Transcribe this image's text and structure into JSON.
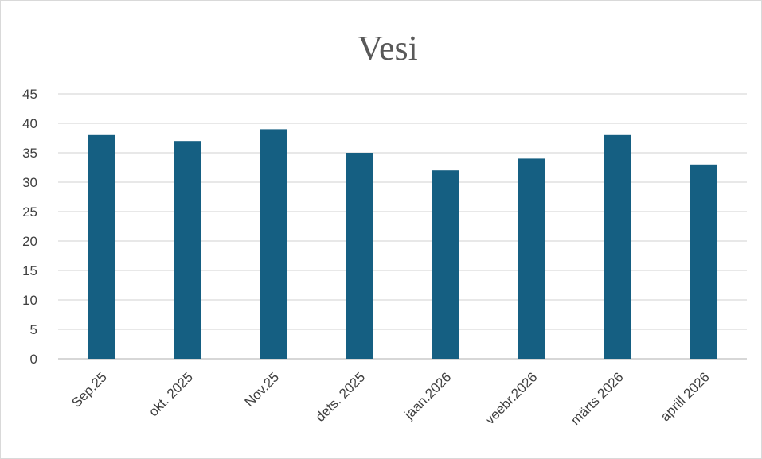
{
  "chart_data": {
    "type": "bar",
    "title": "Vesi",
    "xlabel": "",
    "ylabel": "",
    "categories": [
      "Sep.25",
      "okt. 2025",
      "Nov.25",
      "dets. 2025",
      "jaan.2026",
      "veebr.2026",
      "märts 2026",
      "aprill 2026"
    ],
    "values": [
      38,
      37,
      39,
      35,
      32,
      34,
      38,
      33
    ],
    "ylim": [
      0,
      45
    ],
    "yticks": [
      0,
      5,
      10,
      15,
      20,
      25,
      30,
      35,
      40,
      45
    ],
    "grid": true,
    "legend": "none",
    "bar_color": "#155f82"
  }
}
